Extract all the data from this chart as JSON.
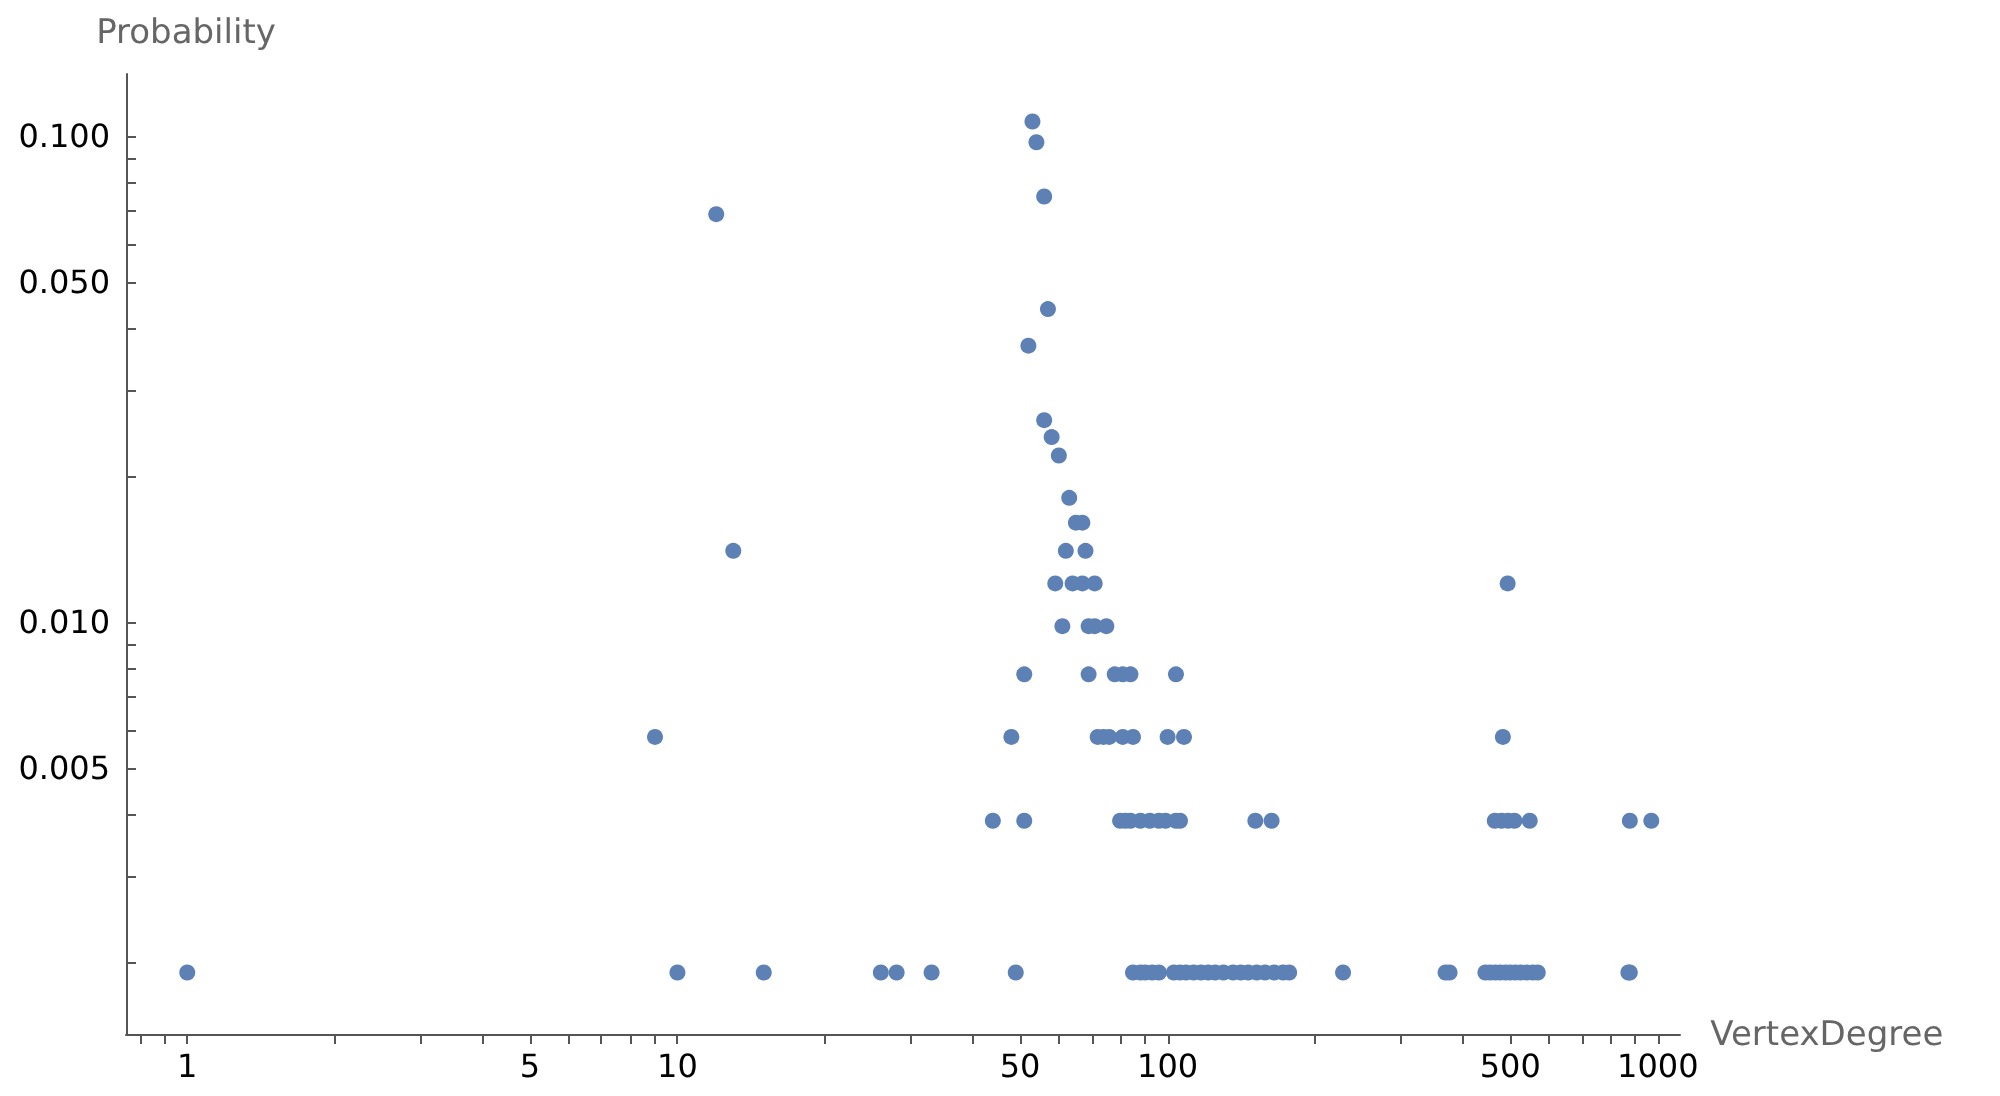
{
  "chart_data": {
    "type": "scatter",
    "xlabel": "VertexDegree",
    "ylabel": "Probability",
    "log": "xy",
    "grid": false,
    "marker": "circle",
    "xlim": [
      0.75,
      1110
    ],
    "ylim": [
      0.00142,
      0.134
    ],
    "xticks": [
      {
        "value": 0.8,
        "label": null
      },
      {
        "value": 0.9,
        "label": null
      },
      1,
      {
        "value": 2,
        "label": null
      },
      {
        "value": 3,
        "label": null
      },
      {
        "value": 4,
        "label": null
      },
      5,
      {
        "value": 6,
        "label": null
      },
      {
        "value": 7,
        "label": null
      },
      {
        "value": 8,
        "label": null
      },
      {
        "value": 9,
        "label": null
      },
      10,
      {
        "value": 20,
        "label": null
      },
      {
        "value": 30,
        "label": null
      },
      {
        "value": 40,
        "label": null
      },
      50,
      {
        "value": 60,
        "label": null
      },
      {
        "value": 70,
        "label": null
      },
      {
        "value": 80,
        "label": null
      },
      {
        "value": 90,
        "label": null
      },
      100,
      {
        "value": 200,
        "label": null
      },
      {
        "value": 300,
        "label": null
      },
      {
        "value": 400,
        "label": null
      },
      500,
      {
        "value": 600,
        "label": null
      },
      {
        "value": 700,
        "label": null
      },
      {
        "value": 800,
        "label": null
      },
      {
        "value": 900,
        "label": null
      },
      1000
    ],
    "yticks": [
      {
        "value": 0.002,
        "label": null
      },
      {
        "value": 0.003,
        "label": null
      },
      {
        "value": 0.004,
        "label": null
      },
      0.005,
      {
        "value": 0.006,
        "label": null
      },
      {
        "value": 0.007,
        "label": null
      },
      {
        "value": 0.008,
        "label": null
      },
      {
        "value": 0.009,
        "label": null
      },
      {
        "value": 0.01,
        "label": "0.010"
      },
      {
        "value": 0.02,
        "label": null
      },
      {
        "value": 0.03,
        "label": null
      },
      {
        "value": 0.04,
        "label": null
      },
      {
        "value": 0.05,
        "label": "0.050"
      },
      {
        "value": 0.06,
        "label": null
      },
      {
        "value": 0.07,
        "label": null
      },
      {
        "value": 0.08,
        "label": null
      },
      {
        "value": 0.09,
        "label": null
      },
      {
        "value": 0.1,
        "label": "0.100"
      }
    ],
    "series": [
      {
        "color": "#5e81b5",
        "x": [
          53,
          54,
          56,
          57,
          52,
          56,
          58,
          60,
          63,
          65,
          67,
          62,
          68,
          59,
          64,
          67,
          71,
          61,
          69,
          71,
          75,
          51,
          69,
          78,
          81,
          84,
          104,
          48,
          72,
          74,
          76,
          81,
          85,
          100,
          108,
          9,
          483,
          12,
          13,
          494,
          44,
          51,
          80,
          82,
          84,
          88,
          92,
          96,
          99,
          104,
          106,
          151,
          163,
          465,
          480,
          495,
          510,
          548,
          877,
          970,
          1,
          10,
          15,
          26,
          28,
          33,
          49,
          85,
          88,
          90,
          93,
          96,
          103,
          106,
          109,
          113,
          117,
          121,
          125,
          130,
          136,
          141,
          146,
          152,
          158,
          165,
          172,
          177,
          228,
          369,
          376,
          445,
          455,
          466,
          477,
          489,
          500,
          512,
          525,
          540,
          556,
          569,
          871,
          877
        ],
        "values": [
          0.107,
          0.097,
          0.075,
          0.044,
          0.037,
          0.026,
          0.024,
          0.022,
          0.018,
          0.016,
          0.016,
          0.014,
          0.014,
          0.012,
          0.012,
          0.012,
          0.012,
          0.0098,
          0.0098,
          0.0098,
          0.0098,
          0.0078,
          0.0078,
          0.0078,
          0.0078,
          0.0078,
          0.0078,
          0.0058,
          0.0058,
          0.0058,
          0.0058,
          0.0058,
          0.0058,
          0.0058,
          0.0058,
          0.0058,
          0.0058,
          0.069,
          0.014,
          0.012,
          0.0039,
          0.0039,
          0.0039,
          0.0039,
          0.0039,
          0.0039,
          0.0039,
          0.0039,
          0.0039,
          0.0039,
          0.0039,
          0.0039,
          0.0039,
          0.0039,
          0.0039,
          0.0039,
          0.0039,
          0.0039,
          0.0039,
          0.0039,
          0.0019,
          0.0019,
          0.0019,
          0.0019,
          0.0019,
          0.0019,
          0.0019,
          0.0019,
          0.0019,
          0.0019,
          0.0019,
          0.0019,
          0.0019,
          0.0019,
          0.0019,
          0.0019,
          0.0019,
          0.0019,
          0.0019,
          0.0019,
          0.0019,
          0.0019,
          0.0019,
          0.0019,
          0.0019,
          0.0019,
          0.0019,
          0.0019,
          0.0019,
          0.0019,
          0.0019,
          0.0019,
          0.0019,
          0.0019,
          0.0019,
          0.0019,
          0.0019,
          0.0019,
          0.0019,
          0.0019,
          0.0019,
          0.0019,
          0.0019,
          0.0019
        ]
      }
    ]
  }
}
